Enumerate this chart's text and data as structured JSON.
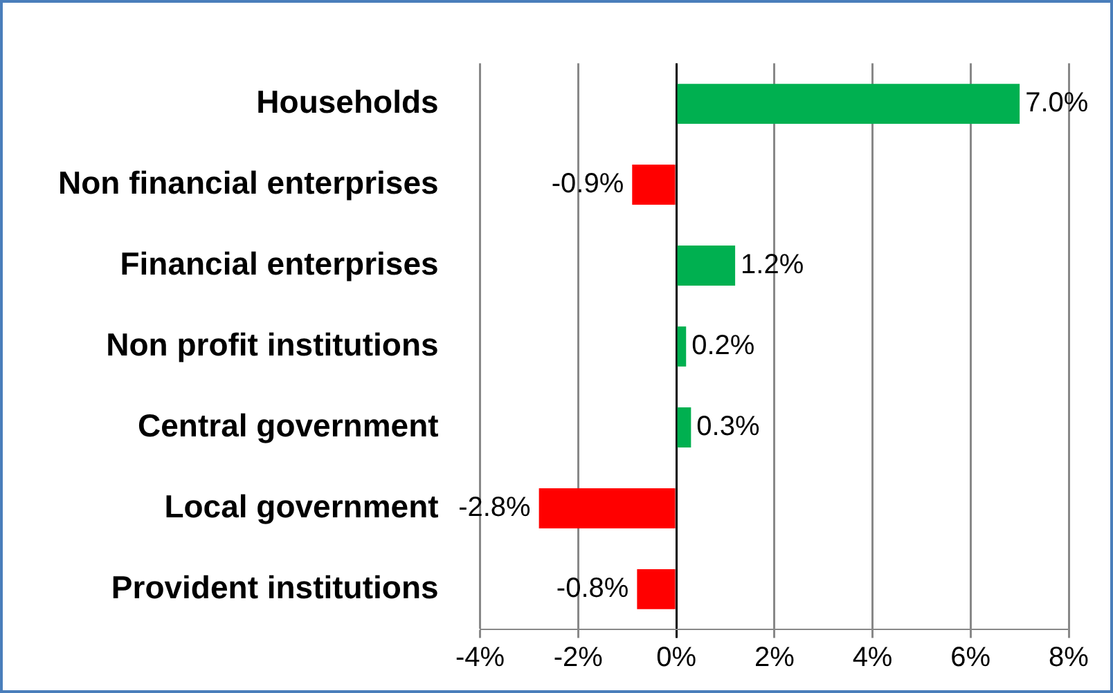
{
  "chart_data": {
    "type": "bar",
    "orientation": "horizontal",
    "categories": [
      "Households",
      "Non financial enterprises",
      "Financial enterprises",
      "Non profit institutions",
      "Central government",
      "Local government",
      "Provident institutions"
    ],
    "values": [
      7.0,
      -0.9,
      1.2,
      0.2,
      0.3,
      -2.8,
      -0.8
    ],
    "colors": [
      "#00b050",
      "#ff0000",
      "#00b050",
      "#00b050",
      "#00b050",
      "#ff0000",
      "#ff0000"
    ],
    "value_labels": [
      "7.0%",
      "-0.9%",
      "1.2%",
      "0.2%",
      "0.3%",
      "-2.8%",
      "-0.8%"
    ],
    "xlim": [
      -4,
      8
    ],
    "xticks": [
      {
        "value": -4,
        "label": "-4%"
      },
      {
        "value": -2,
        "label": "-2%"
      },
      {
        "value": 0,
        "label": "0%"
      },
      {
        "value": 2,
        "label": "2%"
      },
      {
        "value": 4,
        "label": "4%"
      },
      {
        "value": 6,
        "label": "6%"
      },
      {
        "value": 8,
        "label": "8%"
      }
    ],
    "grid": "x",
    "legend": false
  }
}
